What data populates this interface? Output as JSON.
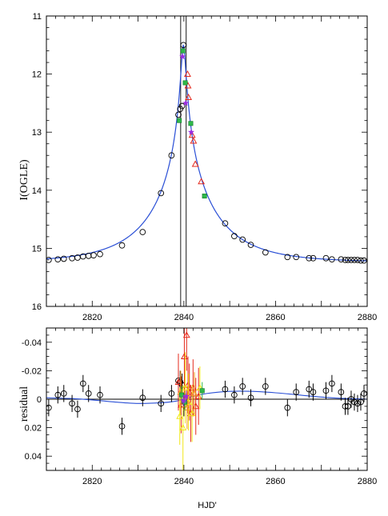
{
  "chart_data": [
    {
      "type": "scatter",
      "title": "",
      "xlabel": "",
      "ylabel": "I(OGLE)",
      "xlim": [
        2810,
        2880
      ],
      "ylim": [
        16,
        11
      ],
      "y_inverted": true,
      "x_ticks": [
        2820,
        2840,
        2860,
        2880
      ],
      "y_ticks": [
        11,
        12,
        13,
        14,
        15,
        16
      ],
      "vertical_lines": [
        2839.3,
        2840.5
      ],
      "model_curve_color": "#2a4fd6",
      "series": [
        {
          "marker": "open-circle",
          "color": "#000000",
          "x": [
            2810.5,
            2812.5,
            2813.8,
            2815.6,
            2816.8,
            2818.0,
            2819.2,
            2820.3,
            2821.7,
            2826.5,
            2831.0,
            2835.0,
            2837.3,
            2838.8,
            2839.2,
            2839.6,
            2839.9,
            2849.0,
            2851.0,
            2852.8,
            2854.6,
            2857.8,
            2862.6,
            2864.5,
            2867.3,
            2868.2,
            2871.0,
            2872.3,
            2874.3,
            2875.2,
            2875.8,
            2876.5,
            2877.2,
            2877.9,
            2878.6,
            2879.3
          ],
          "y": [
            15.2,
            15.19,
            15.18,
            15.17,
            15.16,
            15.14,
            15.13,
            15.12,
            15.1,
            14.95,
            14.72,
            14.05,
            13.4,
            12.7,
            12.6,
            12.55,
            11.5,
            14.57,
            14.79,
            14.85,
            14.94,
            15.07,
            15.15,
            15.15,
            15.17,
            15.17,
            15.17,
            15.19,
            15.19,
            15.2,
            15.2,
            15.2,
            15.2,
            15.2,
            15.21,
            15.21
          ]
        },
        {
          "marker": "triangle",
          "color": "#e52a1d",
          "x": [
            2840.8,
            2840.9,
            2841.0,
            2841.8,
            2842.1,
            2842.5,
            2843.8
          ],
          "y": [
            12.0,
            12.2,
            12.4,
            13.05,
            13.15,
            13.55,
            13.85
          ]
        },
        {
          "marker": "filled-square",
          "color": "#2fb84a",
          "x": [
            2839.0,
            2839.8,
            2840.3,
            2841.5,
            2844.5
          ],
          "y": [
            12.8,
            11.6,
            12.15,
            12.85,
            14.1
          ]
        },
        {
          "marker": "star",
          "color": "#9b2be0",
          "x": [
            2839.7,
            2840.4,
            2841.6
          ],
          "y": [
            11.7,
            12.5,
            13.0
          ]
        }
      ]
    },
    {
      "type": "scatter",
      "title": "",
      "xlabel": "HJD'",
      "ylabel": "residual",
      "xlim": [
        2810,
        2880
      ],
      "ylim": [
        0.05,
        -0.05
      ],
      "y_inverted": true,
      "x_ticks": [
        2820,
        2840,
        2860,
        2880
      ],
      "y_ticks": [
        -0.04,
        -0.02,
        0,
        0.02,
        0.04
      ],
      "y_tick_labels": [
        "-0.04",
        "-0.02",
        "0",
        "0.02",
        "0.04"
      ],
      "zero_line": 0,
      "series": [
        {
          "marker": "open-circle",
          "color": "#000000",
          "x": [
            2810.5,
            2812.5,
            2813.8,
            2815.6,
            2816.8,
            2818.0,
            2819.2,
            2821.7,
            2826.5,
            2831.0,
            2835.0,
            2837.3,
            2838.8,
            2839.2,
            2839.6,
            2840.0,
            2849.0,
            2851.0,
            2852.8,
            2854.6,
            2857.8,
            2862.6,
            2864.5,
            2867.3,
            2868.2,
            2871.0,
            2872.3,
            2874.3,
            2875.2,
            2875.8,
            2876.5,
            2877.2,
            2877.9,
            2878.6,
            2879.3
          ],
          "y": [
            0.006,
            -0.003,
            -0.004,
            0.003,
            0.007,
            -0.011,
            -0.004,
            -0.003,
            0.019,
            -0.001,
            0.003,
            -0.004,
            -0.013,
            -0.012,
            -0.01,
            0.004,
            -0.007,
            -0.003,
            -0.009,
            -0.001,
            -0.009,
            0.006,
            -0.005,
            -0.007,
            -0.005,
            -0.006,
            -0.011,
            -0.005,
            0.005,
            0.005,
            0.0,
            0.002,
            0.003,
            0.002,
            -0.004
          ],
          "yerr": [
            0.006,
            0.006,
            0.006,
            0.006,
            0.006,
            0.006,
            0.006,
            0.006,
            0.006,
            0.006,
            0.006,
            0.006,
            0.008,
            0.008,
            0.008,
            0.008,
            0.006,
            0.006,
            0.006,
            0.006,
            0.006,
            0.006,
            0.006,
            0.006,
            0.006,
            0.006,
            0.006,
            0.006,
            0.006,
            0.006,
            0.006,
            0.006,
            0.006,
            0.006,
            0.006
          ]
        },
        {
          "marker": "triangle",
          "color": "#e52a1d",
          "x": [
            2838.8,
            2839.4,
            2840.1,
            2840.6,
            2840.9,
            2841.2,
            2841.5,
            2842.0,
            2842.6,
            2843.2
          ],
          "y": [
            -0.012,
            0.004,
            -0.03,
            -0.045,
            -0.01,
            -0.005,
            0.01,
            -0.008,
            0.005,
            -0.002
          ],
          "yerr": [
            0.02,
            0.02,
            0.03,
            0.025,
            0.02,
            0.02,
            0.02,
            0.02,
            0.02,
            0.02
          ]
        },
        {
          "marker": "triangle",
          "color": "#f2e61a",
          "x": [
            2839.1,
            2839.8,
            2840.3,
            2841.0,
            2841.8,
            2843.5
          ],
          "y": [
            0.012,
            0.02,
            -0.008,
            0.002,
            0.01,
            -0.008
          ],
          "yerr": [
            0.02,
            0.03,
            0.025,
            0.02,
            0.02,
            0.015
          ]
        },
        {
          "marker": "triangle",
          "color": "#f29a1a",
          "x": [
            2839.3,
            2840.7,
            2842.3
          ],
          "y": [
            -0.005,
            0.006,
            -0.004
          ],
          "yerr": [
            0.015,
            0.015,
            0.015
          ]
        },
        {
          "marker": "filled-square",
          "color": "#2fb84a",
          "x": [
            2839.5,
            2840.2,
            2844.0
          ],
          "y": [
            -0.003,
            0.002,
            -0.006
          ],
          "yerr": [
            0.006,
            0.006,
            0.006
          ]
        },
        {
          "marker": "star",
          "color": "#9b2be0",
          "x": [
            2839.9,
            2840.5
          ],
          "y": [
            0.001,
            -0.002
          ],
          "yerr": [
            0.004,
            0.004
          ]
        }
      ],
      "model_curve_color": "#2a4fd6",
      "model_curve": {
        "x": [
          2810,
          2815,
          2820,
          2825,
          2830,
          2835,
          2838,
          2840,
          2842,
          2845,
          2850,
          2855,
          2860,
          2865,
          2870,
          2875,
          2880
        ],
        "y": [
          -0.001,
          -0.0005,
          0.0005,
          0.002,
          0.003,
          0.0025,
          0.0015,
          0.0,
          -0.002,
          -0.004,
          -0.0055,
          -0.0055,
          -0.0045,
          -0.003,
          -0.0015,
          -0.0005,
          0.0
        ]
      }
    }
  ]
}
